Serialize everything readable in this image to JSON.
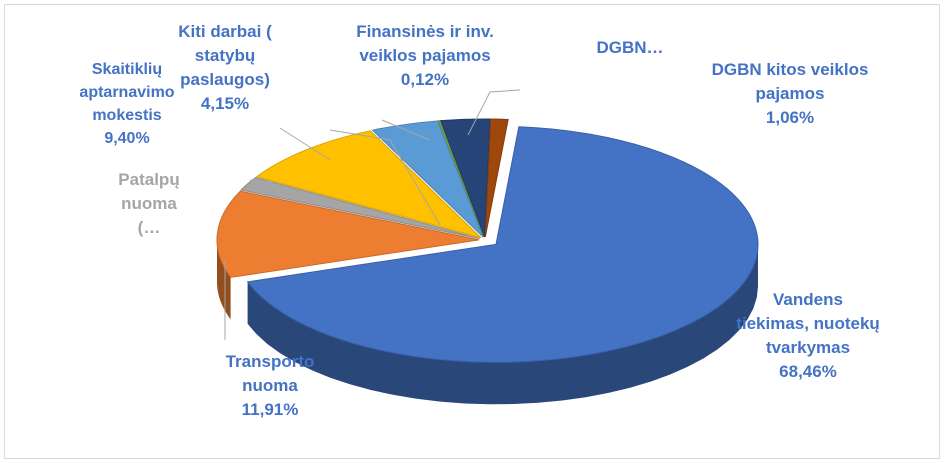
{
  "chart_data": {
    "type": "pie3d",
    "categories": [
      "Vandens tiekimas, nuotekų tvarkymas",
      "Transporto nuoma",
      "Patalpų nuoma (…",
      "Skaitiklių aptarnavimo mokestis",
      "Kiti darbai ( statybų paslaugos)",
      "Finansinės ir inv. veiklos pajamos",
      "DGBN…",
      "DGBN kitos veiklos pajamos"
    ],
    "values": [
      68.46,
      11.91,
      1.9,
      9.4,
      4.15,
      0.12,
      3.0,
      1.06
    ],
    "value_labels": [
      "68,46%",
      "11,91%",
      null,
      "9,40%",
      "4,15%",
      "0,12%",
      null,
      "1,06%"
    ],
    "colors": [
      "#4472c4",
      "#ed7d31",
      "#a5a5a5",
      "#ffc000",
      "#5b9bd5",
      "#70ad47",
      "#264478",
      "#9e480e"
    ]
  }
}
